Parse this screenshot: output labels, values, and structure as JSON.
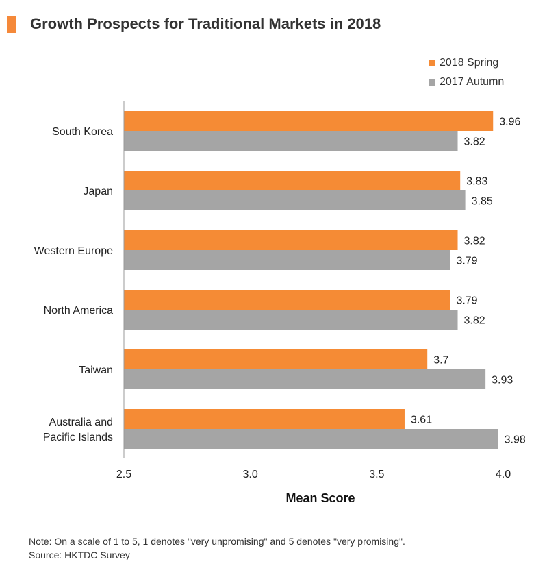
{
  "title": "Growth Prospects for Traditional Markets in 2018",
  "legend": {
    "spring_label": "2018 Spring",
    "autumn_label": "2017 Autumn"
  },
  "note": "Note: On a scale of 1 to 5, 1 denotes \"very unpromising\" and 5 denotes \"very promising\".",
  "source": "Source: HKTDC Survey",
  "colors": {
    "spring": "#f58b35",
    "autumn": "#a5a5a5",
    "accent": "#f5893a"
  },
  "chart_data": {
    "type": "bar",
    "orientation": "horizontal",
    "categories": [
      [
        "South Korea"
      ],
      [
        "Japan"
      ],
      [
        "Western Europe"
      ],
      [
        "North America"
      ],
      [
        "Taiwan"
      ],
      [
        "Australia and",
        "Pacific Islands"
      ]
    ],
    "series": [
      {
        "name": "2018 Spring",
        "values": [
          3.96,
          3.83,
          3.82,
          3.79,
          3.7,
          3.61
        ],
        "labels": [
          "3.96",
          "3.83",
          "3.82",
          "3.79",
          "3.7",
          "3.61"
        ]
      },
      {
        "name": "2017 Autumn",
        "values": [
          3.82,
          3.85,
          3.79,
          3.82,
          3.93,
          3.98
        ],
        "labels": [
          "3.82",
          "3.85",
          "3.79",
          "3.82",
          "3.93",
          "3.98"
        ]
      }
    ],
    "xlabel": "Mean Score",
    "xlim": [
      2.5,
      4.0
    ],
    "ticks": [
      "2.5",
      "3.0",
      "3.5",
      "4.0"
    ],
    "tick_values": [
      2.5,
      3.0,
      3.5,
      4.0
    ],
    "grid": false,
    "legend_position": "top-right"
  }
}
